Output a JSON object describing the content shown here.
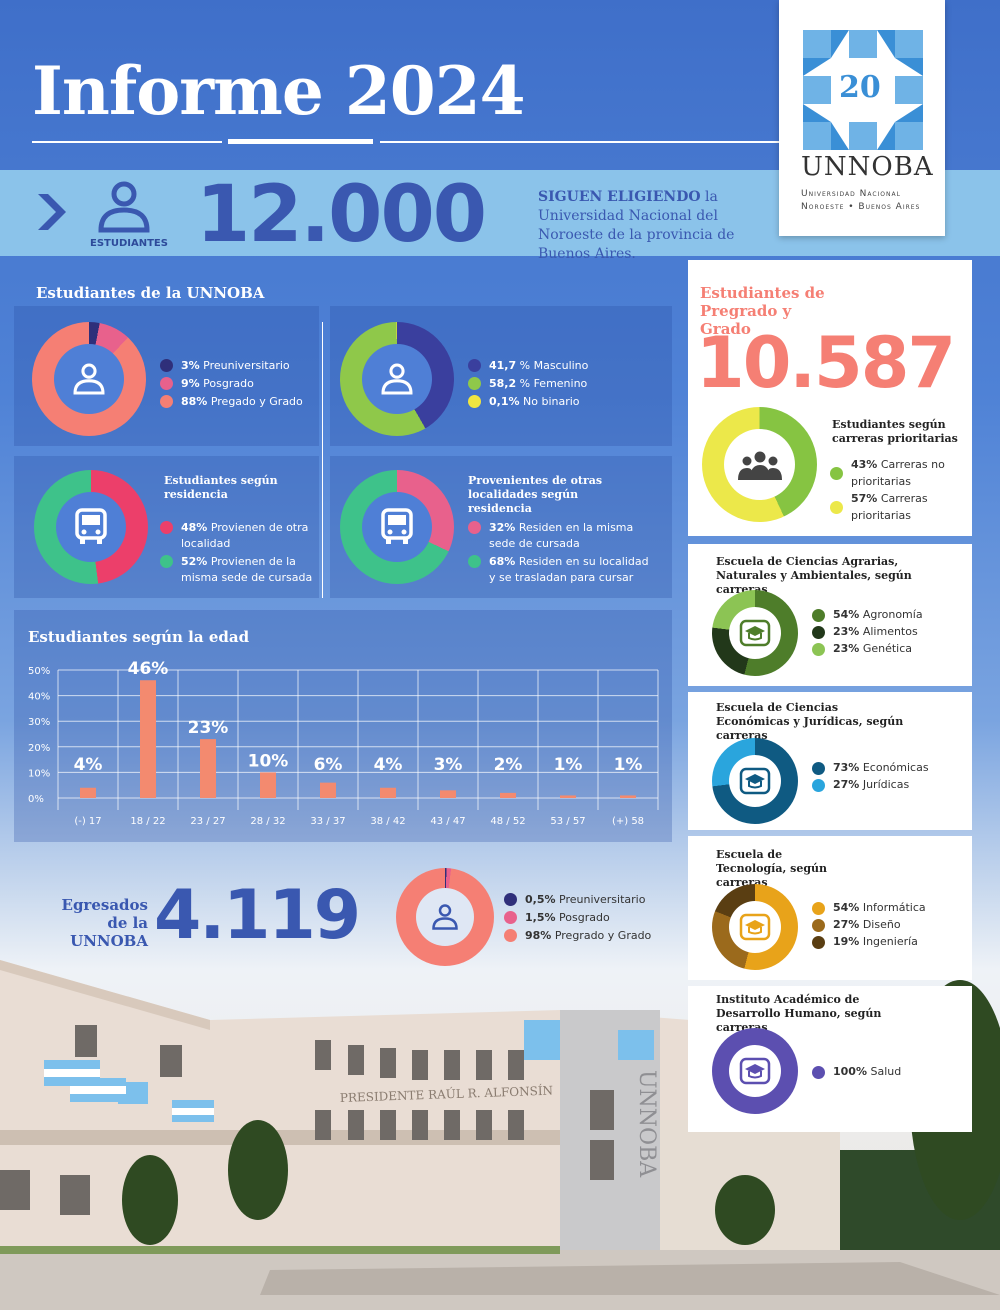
{
  "header": {
    "title": "Informe 2024"
  },
  "students_band": {
    "label": "ESTUDIANTES",
    "total": "12.000",
    "tagline_strong": "SIGUEN ELIGIENDO",
    "tagline_rest": " la Universidad Nacional del Noroeste de la provincia de Buenos Aires."
  },
  "logo": {
    "number": "20",
    "name": "UNNOBA",
    "line1": "Universidad Nacional",
    "line2": "Noroeste • Buenos Aires"
  },
  "section_students": {
    "title": "Estudiantes de la UNNOBA"
  },
  "donut_level": {
    "items": [
      {
        "pct": "3%",
        "label": " Preuniversitario",
        "value": 3,
        "color": "#2f2f7a"
      },
      {
        "pct": "9%",
        "label": " Posgrado",
        "value": 9,
        "color": "#e8618c"
      },
      {
        "pct": "88%",
        "label": " Pregado y Grado",
        "value": 88,
        "color": "#f57f74"
      }
    ]
  },
  "donut_gender": {
    "items": [
      {
        "pct": "41,7",
        "label": " % Masculino",
        "value": 41.7,
        "color": "#3a3f9e"
      },
      {
        "pct": "58,2",
        "label": " % Femenino",
        "value": 58.2,
        "color": "#8fc84a"
      },
      {
        "pct": "0,1%",
        "label": " No binario",
        "value": 0.1,
        "color": "#f0e640"
      }
    ]
  },
  "donut_residence": {
    "title": "Estudiantes según residencia",
    "items": [
      {
        "pct": "48%",
        "label": " Provienen de otra localidad",
        "value": 48,
        "color": "#ec3f6a"
      },
      {
        "pct": "52%",
        "label": " Provienen de la misma sede de cursada",
        "value": 52,
        "color": "#3ec28a"
      }
    ]
  },
  "donut_other": {
    "title": "Provenientes de otras localidades según residencia",
    "items": [
      {
        "pct": "32%",
        "label": " Residen en la misma sede de cursada",
        "value": 32,
        "color": "#e8618c"
      },
      {
        "pct": "68%",
        "label": " Residen en su localidad y se trasladan para cursar",
        "value": 68,
        "color": "#3ec28a"
      }
    ]
  },
  "age_chart_title": "Estudiantes según la edad",
  "chart_data": {
    "type": "bar",
    "title": "Estudiantes según la edad",
    "categories": [
      "(-) 17",
      "18 / 22",
      "23 / 27",
      "28 / 32",
      "33 / 37",
      "38 / 42",
      "43 / 47",
      "48 / 52",
      "53 / 57",
      "(+) 58"
    ],
    "values": [
      4,
      46,
      23,
      10,
      6,
      4,
      3,
      2,
      1,
      1
    ],
    "value_labels": [
      "4%",
      "46%",
      "23%",
      "10%",
      "6%",
      "4%",
      "3%",
      "2%",
      "1%",
      "1%"
    ],
    "yticks": [
      "0%",
      "10%",
      "20%",
      "30%",
      "40%",
      "50%"
    ],
    "ylim": [
      0,
      50
    ],
    "color": "#f38a6f",
    "grid": true
  },
  "graduates": {
    "label": "Egresados de la UNNOBA",
    "total": "4.119",
    "items": [
      {
        "pct": "0,5%",
        "label": " Preuniversitario",
        "value": 0.5,
        "color": "#2f2f7a"
      },
      {
        "pct": "1,5%",
        "label": " Posgrado",
        "value": 1.5,
        "color": "#e8618c"
      },
      {
        "pct": "98%",
        "label": " Pregrado y Grado",
        "value": 98,
        "color": "#f57f74"
      }
    ]
  },
  "undergrad": {
    "title": "Estudiantes de Pregrado y Grado",
    "total": "10.587",
    "subtitle": "Estudiantes según carreras prioritarias",
    "items": [
      {
        "pct": "43%",
        "label": " Carreras no prioritarias",
        "value": 43,
        "color": "#86c442"
      },
      {
        "pct": "57%",
        "label": "  Carreras prioritarias",
        "value": 57,
        "color": "#ece84a"
      }
    ]
  },
  "school_agro": {
    "title": "Escuela de Ciencias Agrarias, Naturales y Ambientales, según carreras",
    "items": [
      {
        "pct": "54%",
        "label": " Agronomía",
        "value": 54,
        "color": "#4e7d2a"
      },
      {
        "pct": "23%",
        "label": " Alimentos",
        "value": 23,
        "color": "#22381a"
      },
      {
        "pct": "23%",
        "label": " Genética",
        "value": 23,
        "color": "#8cc454"
      }
    ]
  },
  "school_econ": {
    "title": "Escuela de Ciencias Económicas y Jurídicas, según carreras",
    "items": [
      {
        "pct": "73%",
        "label": " Económicas",
        "value": 73,
        "color": "#0f5a82"
      },
      {
        "pct": "27%",
        "label": " Jurídicas",
        "value": 27,
        "color": "#2aa5dd"
      }
    ]
  },
  "school_tech": {
    "title": "Escuela de Tecnología, según carreras",
    "items": [
      {
        "pct": "54%",
        "label": " Informática",
        "value": 54,
        "color": "#e8a31a"
      },
      {
        "pct": "27%",
        "label": " Diseño",
        "value": 27,
        "color": "#9b6a1c"
      },
      {
        "pct": "19%",
        "label": " Ingeniería",
        "value": 19,
        "color": "#5a3e12"
      }
    ]
  },
  "institute": {
    "title": "Instituto Académico de Desarrollo Humano, según carreras",
    "items": [
      {
        "pct": "100%",
        "label": " Salud",
        "value": 100,
        "color": "#5c4fb0"
      }
    ]
  },
  "photo": {
    "facade_text": "PRESIDENTE RAÚL R. ALFONSÍN",
    "tower_text": "UNNOBA"
  }
}
